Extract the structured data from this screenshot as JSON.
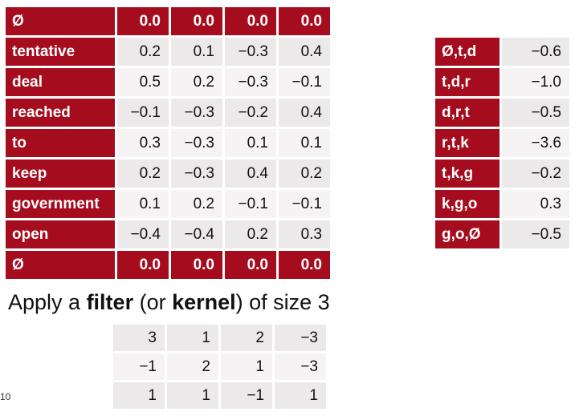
{
  "main_table": {
    "header": {
      "word": "Ø",
      "values": [
        "0.0",
        "0.0",
        "0.0",
        "0.0"
      ]
    },
    "rows": [
      {
        "word": "tentative",
        "values": [
          "0.2",
          "0.1",
          "−0.3",
          "0.4"
        ]
      },
      {
        "word": "deal",
        "values": [
          "0.5",
          "0.2",
          "−0.3",
          "−0.1"
        ]
      },
      {
        "word": "reached",
        "values": [
          "−0.1",
          "−0.3",
          "−0.2",
          "0.4"
        ]
      },
      {
        "word": "to",
        "values": [
          "0.3",
          "−0.3",
          "0.1",
          "0.1"
        ]
      },
      {
        "word": "keep",
        "values": [
          "0.2",
          "−0.3",
          "0.4",
          "0.2"
        ]
      },
      {
        "word": "government",
        "values": [
          "0.1",
          "0.2",
          "−0.1",
          "−0.1"
        ]
      },
      {
        "word": "open",
        "values": [
          "−0.4",
          "−0.4",
          "0.2",
          "0.3"
        ]
      }
    ],
    "footer": {
      "word": "Ø",
      "values": [
        "0.0",
        "0.0",
        "0.0",
        "0.0"
      ]
    }
  },
  "right_table": {
    "rows": [
      {
        "label": "Ø,t,d",
        "value": "−0.6"
      },
      {
        "label": "t,d,r",
        "value": "−1.0"
      },
      {
        "label": "d,r,t",
        "value": "−0.5"
      },
      {
        "label": "r,t,k",
        "value": "−3.6"
      },
      {
        "label": "t,k,g",
        "value": "−0.2"
      },
      {
        "label": "k,g,o",
        "value": "0.3"
      },
      {
        "label": "g,o,Ø",
        "value": "−0.5"
      }
    ]
  },
  "caption": {
    "prefix": "Apply a ",
    "filter": "filter",
    "middle": " (or ",
    "kernel": "kernel",
    "suffix": ") of size 3"
  },
  "filter_table": {
    "rows": [
      [
        "3",
        "1",
        "2",
        "−3"
      ],
      [
        "−1",
        "2",
        "1",
        "−3"
      ],
      [
        "1",
        "1",
        "−1",
        "1"
      ]
    ]
  },
  "page_number": "10",
  "colors": {
    "header_red": "#a50d1f",
    "cell_gray": "#ebe9e9",
    "cell_light": "#f5f3f3"
  }
}
